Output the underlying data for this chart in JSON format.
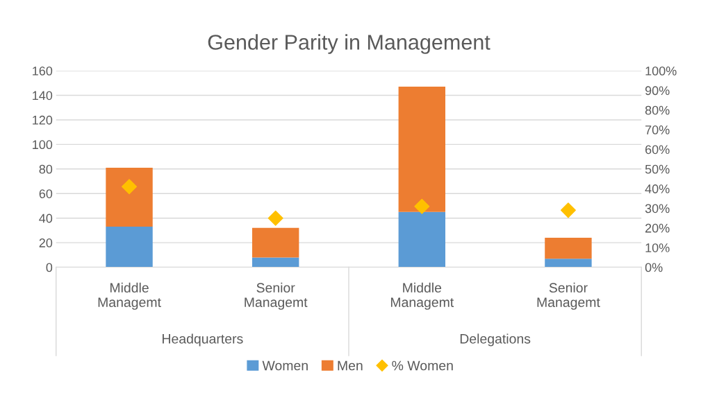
{
  "chart_data": {
    "type": "bar",
    "title": "Gender Parity in Management",
    "categories": [
      "Middle\nManagemt",
      "Senior\nManagemt",
      "Middle\nManagemt",
      "Senior\nManagemt"
    ],
    "annotations": [
      "Headquarters",
      "Delegations"
    ],
    "stacked": true,
    "series": [
      {
        "name": "Women",
        "color": "#5b9bd5",
        "values": [
          33,
          8,
          45,
          7
        ]
      },
      {
        "name": "Men",
        "color": "#ed7d31",
        "values": [
          48,
          24,
          102,
          17
        ]
      },
      {
        "name": "% Women",
        "type": "scatter",
        "axis": "y2",
        "marker": "diamond",
        "color": "#ffc000",
        "values": [
          41,
          25,
          31,
          29
        ]
      }
    ],
    "ylim": [
      0,
      160
    ],
    "yticks": [
      0,
      20,
      40,
      60,
      80,
      100,
      120,
      140,
      160
    ],
    "y2lim": [
      0,
      100
    ],
    "y2ticks": [
      {
        "value": 0,
        "label": "0%"
      },
      {
        "value": 10,
        "label": "10%"
      },
      {
        "value": 20,
        "label": "20%"
      },
      {
        "value": 30,
        "label": "30%"
      },
      {
        "value": 40,
        "label": "40%"
      },
      {
        "value": 50,
        "label": "50%"
      },
      {
        "value": 60,
        "label": "60%"
      },
      {
        "value": 70,
        "label": "70%"
      },
      {
        "value": 80,
        "label": "80%"
      },
      {
        "value": 90,
        "label": "90%"
      },
      {
        "value": 100,
        "label": "100%"
      }
    ],
    "grid": "y",
    "legend": "bottom"
  }
}
